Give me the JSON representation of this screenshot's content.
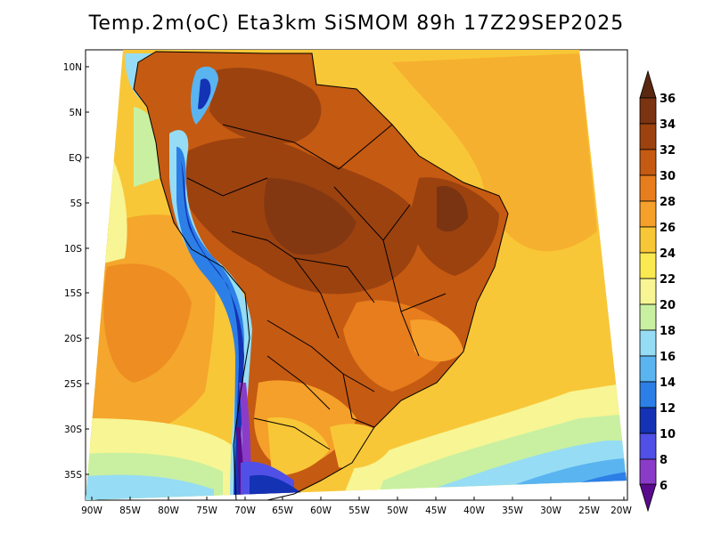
{
  "title": "Temp.2m(oC) Eta3km SiSMOM 89h 17Z29SEP2025",
  "latitude_labels": [
    "10N",
    "5N",
    "EQ",
    "5S",
    "10S",
    "15S",
    "20S",
    "25S",
    "30S",
    "35S"
  ],
  "longitude_labels": [
    "90W",
    "85W",
    "80W",
    "75W",
    "70W",
    "65W",
    "60W",
    "55W",
    "50W",
    "45W",
    "40W",
    "35W",
    "30W",
    "25W",
    "20W"
  ],
  "colorbar": {
    "labels": [
      "36",
      "34",
      "32",
      "30",
      "28",
      "26",
      "24",
      "22",
      "20",
      "18",
      "16",
      "14",
      "12",
      "10",
      "8",
      "6"
    ],
    "colors": [
      "#5a2810",
      "#7a3412",
      "#9c420f",
      "#c55a12",
      "#e77d1c",
      "#f5a02a",
      "#f8c737",
      "#fbe952",
      "#f7f594",
      "#c8f0a0",
      "#96dcf5",
      "#5ab4f0",
      "#2c7fe6",
      "#1432b4",
      "#5050e6",
      "#8a3cc8",
      "#5a0a8c"
    ]
  }
}
